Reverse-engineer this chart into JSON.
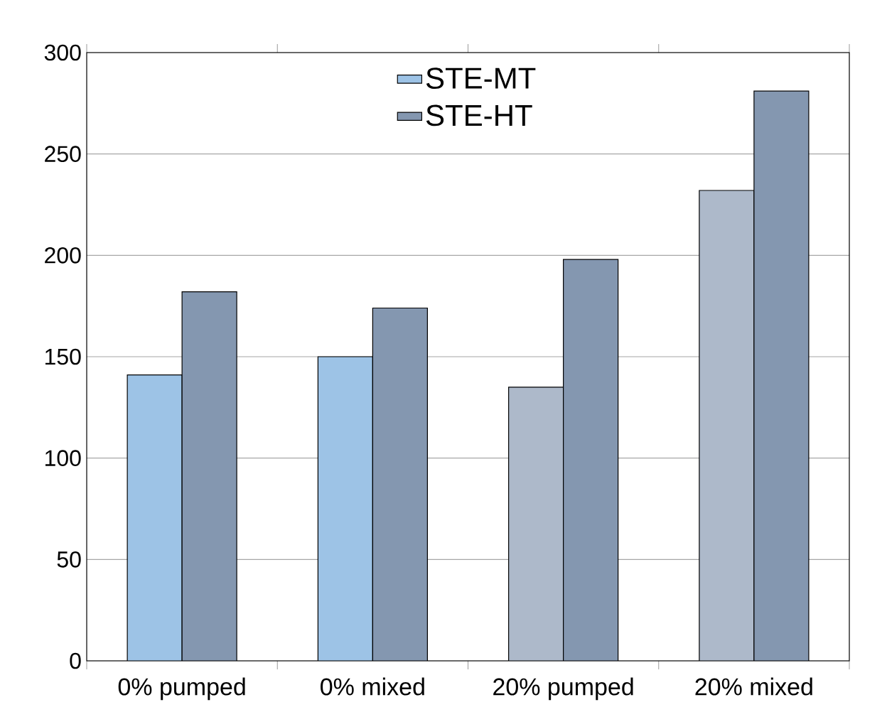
{
  "chart_data": {
    "type": "bar",
    "categories": [
      "0% pumped",
      "0% mixed",
      "20% pumped",
      "20% mixed"
    ],
    "series": [
      {
        "name": "STE-MT",
        "color": "#9dc3e6",
        "colors": [
          "#9dc3e6",
          "#9dc3e6",
          "#adb9ca",
          "#adb9ca"
        ],
        "values": [
          141,
          150,
          135,
          232
        ]
      },
      {
        "name": "STE-HT",
        "color": "#8497b0",
        "colors": [
          "#8497b0",
          "#8497b0",
          "#8497b0",
          "#8497b0"
        ],
        "values": [
          182,
          174,
          198,
          281
        ]
      }
    ],
    "ylim": [
      0,
      300
    ],
    "yticks": [
      0,
      50,
      100,
      150,
      200,
      250,
      300
    ],
    "grid": "y",
    "legend": "top"
  }
}
